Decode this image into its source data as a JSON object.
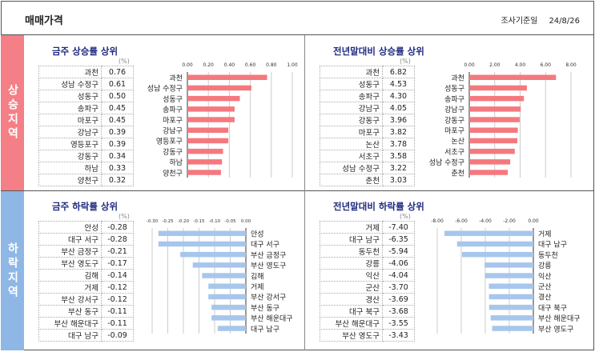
{
  "header": {
    "title": "매매가격",
    "date_label": "조사기준일",
    "date": "24/8/26"
  },
  "sections": {
    "up": "상승지역",
    "down": "하락지역"
  },
  "unit": "(%)",
  "chart_data": [
    {
      "type": "bar",
      "title": "금주 상승률 상위",
      "categories": [
        "과천",
        "성남 수정구",
        "성동구",
        "송파구",
        "마포구",
        "강남구",
        "영등포구",
        "강동구",
        "하남",
        "양천구"
      ],
      "values": [
        0.76,
        0.61,
        0.5,
        0.45,
        0.45,
        0.39,
        0.39,
        0.34,
        0.33,
        0.32
      ],
      "xlim": [
        0,
        1
      ],
      "ticks": [
        "0.00",
        "0.20",
        "0.40",
        "0.60",
        "0.80",
        "1.00"
      ],
      "color": "#f4797f"
    },
    {
      "type": "bar",
      "title": "전년말대비 상승률 상위",
      "categories": [
        "과천",
        "성동구",
        "송파구",
        "강남구",
        "강동구",
        "마포구",
        "논산",
        "서초구",
        "성남 수정구",
        "춘천"
      ],
      "values": [
        6.82,
        4.53,
        4.3,
        4.05,
        3.96,
        3.82,
        3.78,
        3.58,
        3.22,
        3.03
      ],
      "xlim": [
        0,
        8
      ],
      "ticks": [
        "0.00",
        "2.00",
        "4.00",
        "6.00",
        "8.00"
      ],
      "color": "#f4797f"
    },
    {
      "type": "bar",
      "title": "금주 하락률 상위",
      "categories": [
        "안성",
        "대구 서구",
        "부산 금정구",
        "부산 영도구",
        "김해",
        "거제",
        "부산 강서구",
        "부산 동구",
        "부산 해운대구",
        "대구 남구"
      ],
      "values": [
        -0.28,
        -0.28,
        -0.21,
        -0.17,
        -0.14,
        -0.12,
        -0.12,
        -0.11,
        -0.11,
        -0.09
      ],
      "xlim": [
        -0.3,
        0
      ],
      "ticks": [
        "-0.30",
        "-0.25",
        "-0.20",
        "-0.15",
        "-0.10",
        "-0.05",
        "0.00"
      ],
      "color": "#a7c6ec"
    },
    {
      "type": "bar",
      "title": "전년말대비 하락률 상위",
      "categories": [
        "거제",
        "대구 남구",
        "동두천",
        "강릉",
        "익산",
        "군산",
        "경산",
        "대구 북구",
        "부산 해운대구",
        "부산 영도구"
      ],
      "values": [
        -7.4,
        -6.35,
        -5.94,
        -4.06,
        -4.04,
        -3.7,
        -3.69,
        -3.68,
        -3.55,
        -3.43
      ],
      "xlim": [
        -8,
        0
      ],
      "ticks": [
        "-8.00",
        "-6.00",
        "-4.00",
        "-2.00",
        "0.00"
      ],
      "color": "#a7c6ec"
    }
  ]
}
